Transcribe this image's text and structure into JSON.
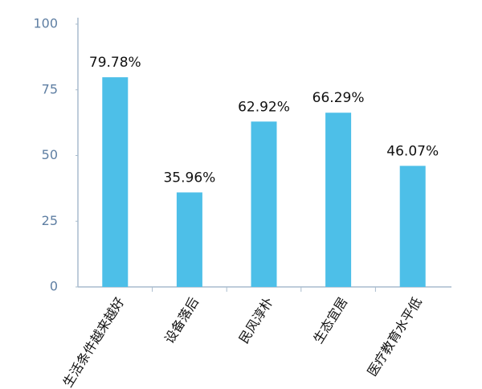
{
  "chart_data": {
    "type": "bar",
    "categories": [
      "生活条件越来越好",
      "设备落后",
      "民风淳朴",
      "生态宜居",
      "医疗教育水平低"
    ],
    "values": [
      79.78,
      35.96,
      62.92,
      66.29,
      46.07
    ],
    "value_labels": [
      "79.78%",
      "35.96%",
      "62.92%",
      "66.29%",
      "46.07%"
    ],
    "color": "#4dbfe8",
    "ylim": [
      0,
      100
    ],
    "yticks": [
      0,
      25,
      50,
      75,
      100
    ],
    "grid": false
  }
}
